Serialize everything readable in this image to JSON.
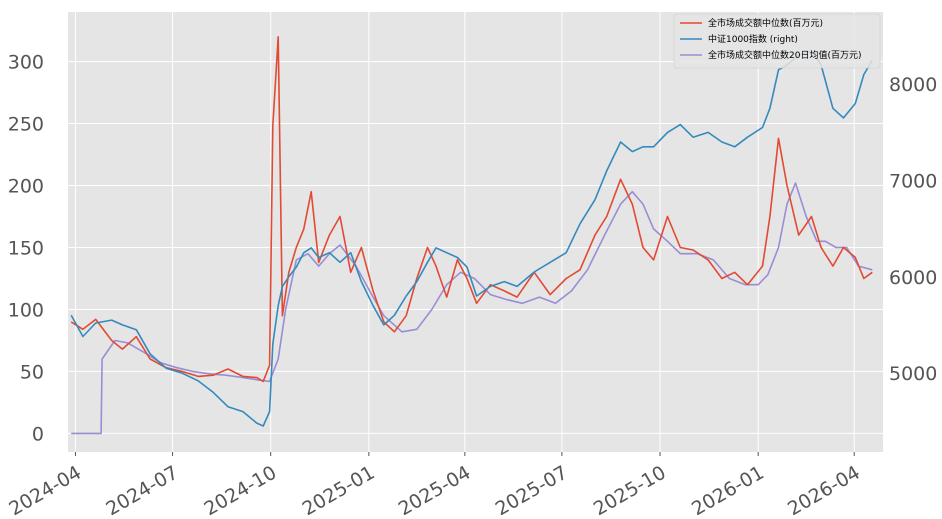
{
  "chart_data": {
    "type": "line",
    "title": "",
    "xlabel": "",
    "ylabel": "",
    "y2label": "",
    "grid": true,
    "legend_position": "top-right",
    "x_ticks": [
      "2024-04",
      "2024-07",
      "2024-10",
      "2025-01",
      "2025-04",
      "2025-07",
      "2025-10",
      "2026-01",
      "2026-04"
    ],
    "x_range": [
      "2024-03-25",
      "2026-04-28"
    ],
    "ylim": [
      -15,
      340
    ],
    "y_ticks": [
      0,
      50,
      100,
      150,
      200,
      250,
      300
    ],
    "y2lim": [
      4180,
      8750
    ],
    "y2_ticks": [
      5000,
      6000,
      7000,
      8000
    ],
    "series": [
      {
        "name": "全市场成交额中位数(百万元)",
        "axis": "left",
        "color": "#E24A33",
        "dates": [
          "2024-03-28",
          "2024-04-08",
          "2024-04-20",
          "2024-05-05",
          "2024-05-15",
          "2024-05-28",
          "2024-06-10",
          "2024-06-25",
          "2024-07-10",
          "2024-07-25",
          "2024-08-08",
          "2024-08-22",
          "2024-09-05",
          "2024-09-18",
          "2024-09-24",
          "2024-09-30",
          "2024-10-03",
          "2024-10-08",
          "2024-10-12",
          "2024-10-18",
          "2024-10-25",
          "2024-11-01",
          "2024-11-08",
          "2024-11-15",
          "2024-11-25",
          "2024-12-05",
          "2024-12-15",
          "2024-12-25",
          "2025-01-05",
          "2025-01-15",
          "2025-01-25",
          "2025-02-05",
          "2025-02-15",
          "2025-02-25",
          "2025-03-05",
          "2025-03-15",
          "2025-03-25",
          "2025-04-03",
          "2025-04-12",
          "2025-04-25",
          "2025-05-08",
          "2025-05-20",
          "2025-06-05",
          "2025-06-20",
          "2025-07-05",
          "2025-07-18",
          "2025-08-01",
          "2025-08-12",
          "2025-08-25",
          "2025-09-05",
          "2025-09-15",
          "2025-09-25",
          "2025-10-08",
          "2025-10-20",
          "2025-11-01",
          "2025-11-15",
          "2025-11-28",
          "2025-12-10",
          "2025-12-22",
          "2026-01-05",
          "2026-01-12",
          "2026-01-20",
          "2026-01-28",
          "2026-02-08",
          "2026-02-20",
          "2026-03-01",
          "2026-03-12",
          "2026-03-22",
          "2026-04-02",
          "2026-04-10",
          "2026-04-18"
        ],
        "values": [
          90,
          84,
          92,
          75,
          68,
          78,
          60,
          53,
          50,
          46,
          47,
          52,
          46,
          45,
          42,
          55,
          248,
          320,
          95,
          130,
          150,
          165,
          195,
          138,
          160,
          175,
          130,
          150,
          115,
          90,
          82,
          95,
          125,
          150,
          135,
          110,
          140,
          125,
          105,
          120,
          115,
          110,
          130,
          112,
          125,
          132,
          160,
          175,
          205,
          185,
          150,
          140,
          175,
          150,
          148,
          140,
          125,
          130,
          120,
          135,
          175,
          238,
          200,
          160,
          175,
          150,
          135,
          150,
          142,
          125,
          130
        ]
      },
      {
        "name": "中证1000指数 (right)",
        "axis": "right",
        "color": "#348ABD",
        "dates": [
          "2024-03-28",
          "2024-04-08",
          "2024-04-20",
          "2024-05-05",
          "2024-05-15",
          "2024-05-28",
          "2024-06-10",
          "2024-06-25",
          "2024-07-10",
          "2024-07-25",
          "2024-08-08",
          "2024-08-22",
          "2024-09-05",
          "2024-09-18",
          "2024-09-24",
          "2024-09-30",
          "2024-10-03",
          "2024-10-08",
          "2024-10-12",
          "2024-10-18",
          "2024-10-25",
          "2024-11-01",
          "2024-11-08",
          "2024-11-15",
          "2024-11-25",
          "2024-12-05",
          "2024-12-15",
          "2024-12-25",
          "2025-01-05",
          "2025-01-15",
          "2025-01-25",
          "2025-02-05",
          "2025-02-15",
          "2025-02-25",
          "2025-03-05",
          "2025-03-15",
          "2025-03-25",
          "2025-04-03",
          "2025-04-12",
          "2025-04-25",
          "2025-05-08",
          "2025-05-20",
          "2025-06-05",
          "2025-06-20",
          "2025-07-05",
          "2025-07-18",
          "2025-08-01",
          "2025-08-12",
          "2025-08-25",
          "2025-09-05",
          "2025-09-15",
          "2025-09-25",
          "2025-10-08",
          "2025-10-20",
          "2025-11-01",
          "2025-11-15",
          "2025-11-28",
          "2025-12-10",
          "2025-12-22",
          "2026-01-05",
          "2026-01-12",
          "2026-01-20",
          "2026-01-28",
          "2026-02-08",
          "2026-02-20",
          "2026-03-01",
          "2026-03-12",
          "2026-03-22",
          "2026-04-02",
          "2026-04-10",
          "2026-04-18"
        ],
        "values": [
          5600,
          5380,
          5520,
          5550,
          5500,
          5450,
          5200,
          5050,
          5000,
          4920,
          4800,
          4650,
          4600,
          4480,
          4450,
          4600,
          5300,
          5700,
          5900,
          6000,
          6100,
          6250,
          6300,
          6200,
          6250,
          6150,
          6250,
          5950,
          5700,
          5500,
          5600,
          5800,
          5950,
          6150,
          6300,
          6250,
          6200,
          6100,
          5800,
          5900,
          5950,
          5900,
          6050,
          6150,
          6250,
          6550,
          6800,
          7100,
          7400,
          7300,
          7350,
          7350,
          7500,
          7580,
          7450,
          7500,
          7400,
          7350,
          7450,
          7550,
          7750,
          8150,
          8200,
          8300,
          8350,
          8200,
          7750,
          7650,
          7800,
          8100,
          8250
        ]
      },
      {
        "name": "全市场成交额中位数20日均值(百万元)",
        "axis": "left",
        "color": "#988ED5",
        "dates": [
          "2024-03-28",
          "2024-04-20",
          "2024-04-25",
          "2024-04-26",
          "2024-05-08",
          "2024-05-20",
          "2024-06-05",
          "2024-06-20",
          "2024-07-05",
          "2024-07-20",
          "2024-08-05",
          "2024-08-20",
          "2024-09-05",
          "2024-09-20",
          "2024-09-30",
          "2024-10-08",
          "2024-10-15",
          "2024-10-25",
          "2024-11-05",
          "2024-11-15",
          "2024-11-25",
          "2024-12-05",
          "2024-12-20",
          "2025-01-05",
          "2025-01-15",
          "2025-02-01",
          "2025-02-15",
          "2025-03-01",
          "2025-03-15",
          "2025-03-28",
          "2025-04-10",
          "2025-04-25",
          "2025-05-10",
          "2025-05-25",
          "2025-06-10",
          "2025-06-25",
          "2025-07-10",
          "2025-07-25",
          "2025-08-10",
          "2025-08-25",
          "2025-09-05",
          "2025-09-15",
          "2025-09-25",
          "2025-10-08",
          "2025-10-20",
          "2025-11-05",
          "2025-11-20",
          "2025-12-05",
          "2025-12-20",
          "2026-01-01",
          "2026-01-10",
          "2026-01-20",
          "2026-01-28",
          "2026-02-05",
          "2026-02-15",
          "2026-02-25",
          "2026-03-05",
          "2026-03-15",
          "2026-03-25",
          "2026-04-05",
          "2026-04-18"
        ],
        "values": [
          0,
          0,
          0,
          60,
          75,
          73,
          65,
          57,
          53,
          50,
          48,
          47,
          45,
          43,
          42,
          60,
          100,
          140,
          145,
          135,
          145,
          152,
          135,
          110,
          95,
          82,
          84,
          100,
          120,
          130,
          125,
          112,
          108,
          105,
          110,
          105,
          115,
          132,
          160,
          185,
          195,
          185,
          165,
          155,
          145,
          145,
          140,
          125,
          120,
          120,
          128,
          150,
          185,
          202,
          175,
          155,
          155,
          150,
          150,
          135,
          132
        ]
      }
    ]
  }
}
